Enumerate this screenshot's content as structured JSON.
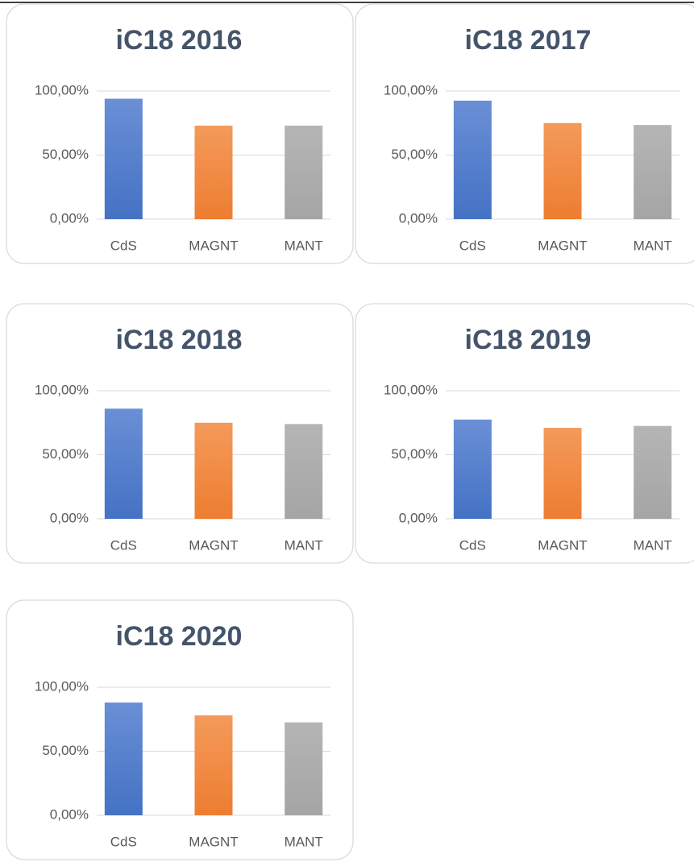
{
  "chart_data": [
    {
      "type": "bar",
      "title": "iC18 2016",
      "categories": [
        "CdS",
        "MAGNT",
        "MANT"
      ],
      "values": [
        94,
        73,
        73
      ],
      "colors": [
        "#4472c4",
        "#ed7d31",
        "#a5a5a5"
      ],
      "ylim": [
        0,
        100
      ],
      "yticks": [
        {
          "value": 0,
          "label": "0,00%"
        },
        {
          "value": 50,
          "label": "50,00%"
        },
        {
          "value": 100,
          "label": "100,00%"
        }
      ],
      "grid": true
    },
    {
      "type": "bar",
      "title": "iC18 2017",
      "categories": [
        "CdS",
        "MAGNT",
        "MANT"
      ],
      "values": [
        92.5,
        75,
        73.5
      ],
      "colors": [
        "#4472c4",
        "#ed7d31",
        "#a5a5a5"
      ],
      "ylim": [
        0,
        100
      ],
      "yticks": [
        {
          "value": 0,
          "label": "0,00%"
        },
        {
          "value": 50,
          "label": "50,00%"
        },
        {
          "value": 100,
          "label": "100,00%"
        }
      ],
      "grid": true
    },
    {
      "type": "bar",
      "title": "iC18 2018",
      "categories": [
        "CdS",
        "MAGNT",
        "MANT"
      ],
      "values": [
        86,
        75,
        74
      ],
      "colors": [
        "#4472c4",
        "#ed7d31",
        "#a5a5a5"
      ],
      "ylim": [
        0,
        100
      ],
      "yticks": [
        {
          "value": 0,
          "label": "0,00%"
        },
        {
          "value": 50,
          "label": "50,00%"
        },
        {
          "value": 100,
          "label": "100,00%"
        }
      ],
      "grid": true
    },
    {
      "type": "bar",
      "title": "iC18 2019",
      "categories": [
        "CdS",
        "MAGNT",
        "MANT"
      ],
      "values": [
        77.5,
        71,
        72.5
      ],
      "colors": [
        "#4472c4",
        "#ed7d31",
        "#a5a5a5"
      ],
      "ylim": [
        0,
        100
      ],
      "yticks": [
        {
          "value": 0,
          "label": "0,00%"
        },
        {
          "value": 50,
          "label": "50,00%"
        },
        {
          "value": 100,
          "label": "100,00%"
        }
      ],
      "grid": true
    },
    {
      "type": "bar",
      "title": "iC18 2020",
      "categories": [
        "CdS",
        "MAGNT",
        "MANT"
      ],
      "values": [
        88,
        78,
        72.5
      ],
      "colors": [
        "#4472c4",
        "#ed7d31",
        "#a5a5a5"
      ],
      "ylim": [
        0,
        100
      ],
      "yticks": [
        {
          "value": 0,
          "label": "0,00%"
        },
        {
          "value": 50,
          "label": "50,00%"
        },
        {
          "value": 100,
          "label": "100,00%"
        }
      ],
      "grid": true
    }
  ]
}
